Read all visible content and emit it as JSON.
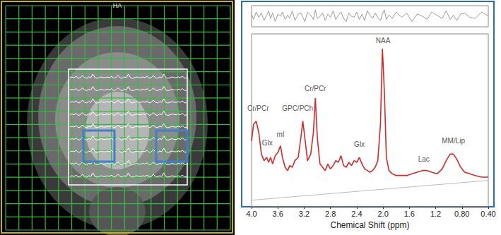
{
  "image_panel": {
    "label": "HA"
  },
  "chart_data": {
    "type": "line",
    "xlabel": "Chemical Shift (ppm)",
    "xlim": [
      4.0,
      0.4
    ],
    "xticks": [
      {
        "value": 4.0,
        "label": "4.0"
      },
      3.6,
      3.2,
      2.8,
      2.4,
      {
        "value": 2.0,
        "label": "2.0"
      },
      1.6,
      1.2,
      {
        "value": 0.8,
        "label": "0.80"
      },
      {
        "value": 0.4,
        "label": "0.40"
      }
    ],
    "ylim": [
      0,
      105
    ],
    "tick_labels": "x",
    "grid": false,
    "series": [
      {
        "type": "line",
        "color": "#d42a2a",
        "x": [
          4.0,
          3.97,
          3.93,
          3.89,
          3.85,
          3.81,
          3.77,
          3.74,
          3.71,
          3.68,
          3.64,
          3.6,
          3.56,
          3.53,
          3.49,
          3.45,
          3.42,
          3.38,
          3.34,
          3.29,
          3.25,
          3.22,
          3.19,
          3.15,
          3.1,
          3.06,
          3.03,
          3.0,
          2.96,
          2.92,
          2.88,
          2.84,
          2.8,
          2.76,
          2.72,
          2.68,
          2.64,
          2.6,
          2.56,
          2.52,
          2.48,
          2.44,
          2.4,
          2.36,
          2.32,
          2.28,
          2.24,
          2.2,
          2.16,
          2.12,
          2.08,
          2.04,
          2.01,
          1.98,
          1.95,
          1.91,
          1.86,
          1.8,
          1.72,
          1.64,
          1.56,
          1.48,
          1.4,
          1.33,
          1.26,
          1.18,
          1.1,
          1.04,
          0.98,
          0.93,
          0.88,
          0.82,
          0.76,
          0.68,
          0.6,
          0.5,
          0.4
        ],
        "values": [
          40,
          50,
          52,
          45,
          32,
          28,
          30,
          27,
          30,
          26,
          31,
          33,
          37,
          30,
          24,
          22,
          25,
          24,
          28,
          30,
          42,
          52,
          42,
          28,
          32,
          45,
          66,
          42,
          26,
          24,
          22,
          26,
          23,
          25,
          28,
          27,
          31,
          25,
          24,
          27,
          25,
          28,
          27,
          30,
          26,
          23,
          22,
          21,
          22,
          24,
          28,
          50,
          96,
          70,
          30,
          22,
          20,
          19,
          19,
          19,
          20,
          21,
          22,
          22,
          21,
          20,
          23,
          28,
          32,
          32,
          29,
          24,
          21,
          20,
          19,
          18,
          18
        ]
      },
      {
        "type": "line",
        "color": "#bbbbbb",
        "x": [
          4.0,
          0.4
        ],
        "values": [
          4,
          16
        ]
      }
    ],
    "residual": {
      "color": "#999999",
      "ylim": [
        -10,
        10
      ],
      "values": [
        2,
        -3,
        4,
        -1,
        3,
        -4,
        1,
        5,
        -2,
        3,
        -5,
        2,
        0,
        4,
        -3,
        1,
        -2,
        5,
        -4,
        2,
        3,
        -1,
        -5,
        4,
        1,
        -3,
        6,
        -2,
        0,
        3,
        -4,
        2,
        -1,
        5,
        -3,
        1,
        4,
        -2,
        -5,
        3,
        0,
        -1,
        4,
        -3,
        2,
        -4,
        5,
        1,
        -2,
        3,
        -1,
        -4,
        2,
        6,
        -3,
        1,
        -2,
        4,
        -1,
        3,
        -5,
        2,
        0,
        -3,
        4,
        1,
        -2,
        5,
        -3,
        1,
        -4,
        2,
        3,
        -1,
        -2,
        4,
        0
      ]
    },
    "annotations": [
      {
        "text": "NAA",
        "x": 2.0,
        "y": 101
      },
      {
        "text": "Cr/PCr",
        "x": 3.03,
        "y": 72
      },
      {
        "text": "GPC/PCh",
        "x": 3.3,
        "y": 60
      },
      {
        "text": "Cr/PCr",
        "x": 3.9,
        "y": 60
      },
      {
        "text": "Glx",
        "x": 3.76,
        "y": 39
      },
      {
        "text": "mI",
        "x": 3.56,
        "y": 44
      },
      {
        "text": "Glx",
        "x": 2.36,
        "y": 38
      },
      {
        "text": "Lac",
        "x": 1.38,
        "y": 29
      },
      {
        "text": "MM/Lip",
        "x": 0.93,
        "y": 40
      }
    ]
  }
}
